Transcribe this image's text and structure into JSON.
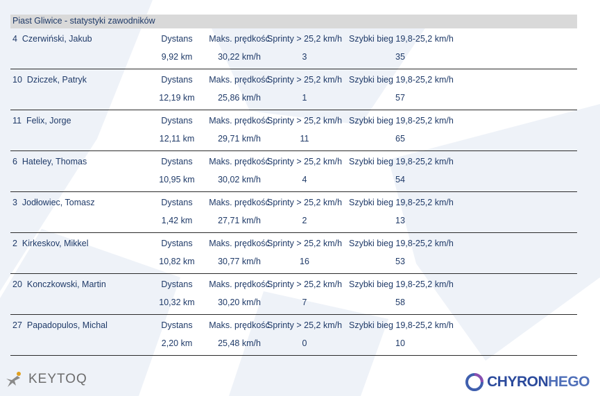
{
  "header": {
    "title": "Piast Gliwice - statystyki zawodników"
  },
  "labels": {
    "distance": "Dystans",
    "max_speed": "Maks. prędkość",
    "sprints": "Sprinty > 25,2 km/h",
    "fast_run": "Szybki bieg 19,8-25,2 km/h"
  },
  "players": [
    {
      "number": "4",
      "name": "Czerwiński, Jakub",
      "distance": "9,92 km",
      "max_speed": "30,22 km/h",
      "sprints": "3",
      "fast_run": "35"
    },
    {
      "number": "10",
      "name": "Dziczek, Patryk",
      "distance": "12,19 km",
      "max_speed": "25,86 km/h",
      "sprints": "1",
      "fast_run": "57"
    },
    {
      "number": "11",
      "name": "Felix, Jorge",
      "distance": "12,11 km",
      "max_speed": "29,71 km/h",
      "sprints": "11",
      "fast_run": "65"
    },
    {
      "number": "6",
      "name": "Hateley, Thomas",
      "distance": "10,95 km",
      "max_speed": "30,02 km/h",
      "sprints": "4",
      "fast_run": "54"
    },
    {
      "number": "3",
      "name": "Jodłowiec, Tomasz",
      "distance": "1,42 km",
      "max_speed": "27,71 km/h",
      "sprints": "2",
      "fast_run": "13"
    },
    {
      "number": "2",
      "name": "Kirkeskov, Mikkel",
      "distance": "10,82 km",
      "max_speed": "30,77 km/h",
      "sprints": "16",
      "fast_run": "53"
    },
    {
      "number": "20",
      "name": "Konczkowski, Martin",
      "distance": "10,32 km",
      "max_speed": "30,20 km/h",
      "sprints": "7",
      "fast_run": "58"
    },
    {
      "number": "27",
      "name": "Papadopulos, Michal",
      "distance": "2,20 km",
      "max_speed": "25,48 km/h",
      "sprints": "0",
      "fast_run": "10"
    }
  ],
  "footer": {
    "left_logo": "KEYTOQ",
    "right_logo_a": "CHYRON",
    "right_logo_b": "HEGO"
  },
  "colors": {
    "text": "#1f3a68",
    "header_bg": "#d9d9d9",
    "watermark": "#eef1f7"
  }
}
